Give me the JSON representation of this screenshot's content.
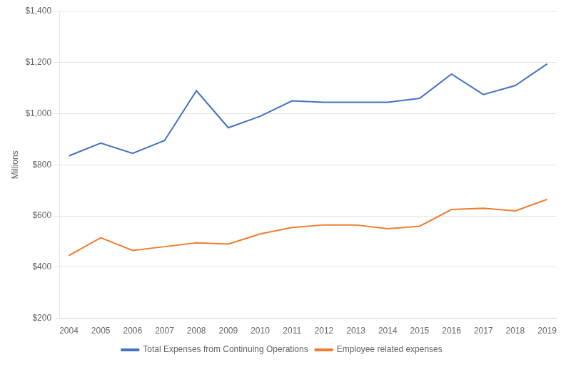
{
  "chart_data": {
    "type": "line",
    "y_label": "Millions",
    "x": [
      2004,
      2005,
      2006,
      2007,
      2008,
      2009,
      2010,
      2011,
      2012,
      2013,
      2014,
      2015,
      2016,
      2017,
      2018,
      2019
    ],
    "series": [
      {
        "name": "Total Expenses from Continuing Operations",
        "color": "#4472C4",
        "values": [
          835,
          885,
          845,
          895,
          1090,
          945,
          990,
          1050,
          1045,
          1045,
          1045,
          1060,
          1155,
          1075,
          1110,
          1195
        ]
      },
      {
        "name": "Employee related expenses",
        "color": "#ED7D31",
        "values": [
          445,
          515,
          465,
          480,
          495,
          490,
          530,
          555,
          565,
          565,
          550,
          560,
          625,
          630,
          620,
          665
        ]
      }
    ],
    "xlim": [
      2003.7,
      2019.3
    ],
    "xticks": [
      2004,
      2005,
      2006,
      2007,
      2008,
      2009,
      2010,
      2011,
      2012,
      2013,
      2014,
      2015,
      2016,
      2017,
      2018,
      2019
    ],
    "ylim": [
      200,
      1400
    ],
    "yticks": [
      {
        "value": 200,
        "label": "$200"
      },
      {
        "value": 400,
        "label": "$400"
      },
      {
        "value": 600,
        "label": "$600"
      },
      {
        "value": 800,
        "label": "$800"
      },
      {
        "value": 1000,
        "label": "$1,000"
      },
      {
        "value": 1200,
        "label": "$1,200"
      },
      {
        "value": 1400,
        "label": "$1,400"
      }
    ],
    "grid": true,
    "legend": "bottom"
  }
}
